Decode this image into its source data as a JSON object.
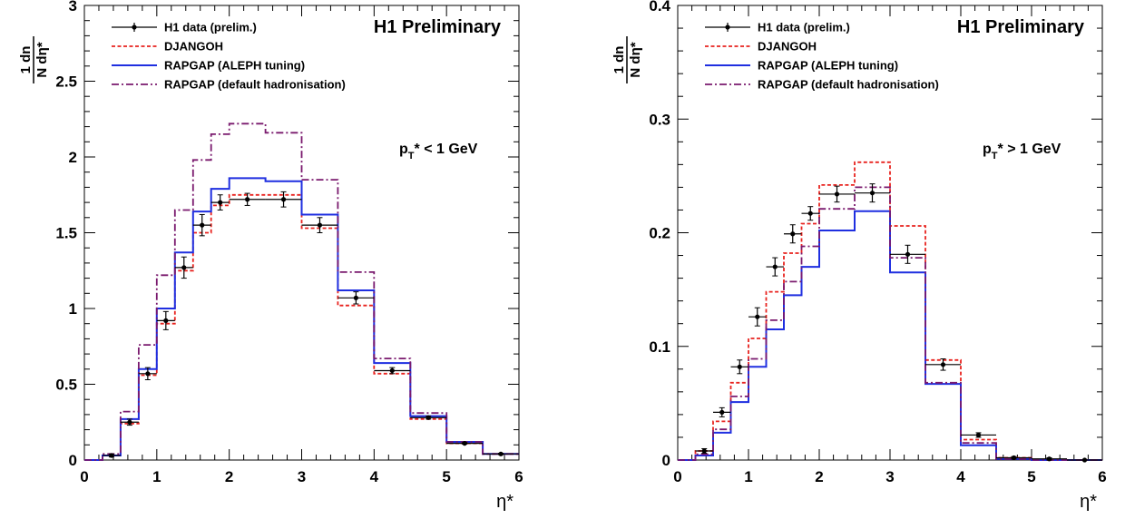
{
  "chart_data": [
    {
      "type": "line",
      "subtype": "histogram",
      "title": "H1 Preliminary",
      "annotation": {
        "base": "p",
        "sub": "T",
        "rest": "* < 1 GeV"
      },
      "xlabel": "η*",
      "ylabel": {
        "num": "1 dn",
        "den": "N dη*"
      },
      "xlim": [
        0,
        6
      ],
      "ylim": [
        0,
        3
      ],
      "xticks": [
        0,
        1,
        2,
        3,
        4,
        5,
        6
      ],
      "yticks": [
        0,
        0.5,
        1,
        1.5,
        2,
        2.5,
        3
      ],
      "grid": false,
      "legend_position": "top-left",
      "bin_edges": [
        0,
        0.25,
        0.5,
        0.75,
        1.0,
        1.25,
        1.5,
        1.75,
        2.0,
        2.5,
        3.0,
        3.5,
        4.0,
        4.5,
        5.0,
        5.5,
        6.0
      ],
      "series": [
        {
          "name": "H1 data (prelim.)",
          "style": "points",
          "color": "#000000",
          "x": [
            0.375,
            0.625,
            0.875,
            1.125,
            1.375,
            1.625,
            1.875,
            2.25,
            2.75,
            3.25,
            3.75,
            4.25,
            4.75,
            5.25,
            5.75
          ],
          "xerr": [
            0.125,
            0.125,
            0.125,
            0.125,
            0.125,
            0.125,
            0.125,
            0.25,
            0.25,
            0.25,
            0.25,
            0.25,
            0.25,
            0.25,
            0.25
          ],
          "y": [
            0.03,
            0.25,
            0.57,
            0.92,
            1.27,
            1.55,
            1.7,
            1.72,
            1.72,
            1.55,
            1.07,
            0.59,
            0.28,
            0.11,
            0.04
          ],
          "yerr": [
            0.01,
            0.02,
            0.04,
            0.06,
            0.07,
            0.07,
            0.05,
            0.04,
            0.05,
            0.05,
            0.04,
            0.02,
            0.01,
            0.005,
            0.005
          ]
        },
        {
          "name": "DJANGOH",
          "style": "dotted",
          "color": "#e8231f",
          "values": [
            0,
            0.03,
            0.24,
            0.56,
            0.9,
            1.25,
            1.5,
            1.68,
            1.75,
            1.75,
            1.53,
            1.02,
            0.57,
            0.27,
            0.11,
            0.04
          ]
        },
        {
          "name": "RAPGAP (ALEPH tuning)",
          "style": "solid",
          "color": "#1f2fe0",
          "values": [
            0,
            0.03,
            0.27,
            0.6,
            1.0,
            1.37,
            1.64,
            1.79,
            1.86,
            1.84,
            1.62,
            1.12,
            0.64,
            0.29,
            0.12,
            0.04
          ]
        },
        {
          "name": "RAPGAP (default hadronisation)",
          "style": "dashdot",
          "color": "#7a1a6e",
          "values": [
            0,
            0.04,
            0.32,
            0.76,
            1.22,
            1.65,
            1.98,
            2.15,
            2.22,
            2.16,
            1.85,
            1.24,
            0.67,
            0.31,
            0.12,
            0.04
          ]
        }
      ]
    },
    {
      "type": "line",
      "subtype": "histogram",
      "title": "H1 Preliminary",
      "annotation": {
        "base": "p",
        "sub": "T",
        "rest": "* > 1 GeV"
      },
      "xlabel": "η*",
      "ylabel": {
        "num": "1 dn",
        "den": "N dη*"
      },
      "xlim": [
        0,
        6
      ],
      "ylim": [
        0,
        0.4
      ],
      "xticks": [
        0,
        1,
        2,
        3,
        4,
        5,
        6
      ],
      "yticks": [
        0,
        0.1,
        0.2,
        0.3,
        0.4
      ],
      "grid": false,
      "legend_position": "top-left",
      "bin_edges": [
        0,
        0.25,
        0.5,
        0.75,
        1.0,
        1.25,
        1.5,
        1.75,
        2.0,
        2.5,
        3.0,
        3.5,
        4.0,
        4.5,
        5.0,
        5.5,
        6.0
      ],
      "series": [
        {
          "name": "H1 data (prelim.)",
          "style": "points",
          "color": "#000000",
          "x": [
            0.375,
            0.625,
            0.875,
            1.125,
            1.375,
            1.625,
            1.875,
            2.25,
            2.75,
            3.25,
            3.75,
            4.25,
            4.75,
            5.25,
            5.75
          ],
          "xerr": [
            0.125,
            0.125,
            0.125,
            0.125,
            0.125,
            0.125,
            0.125,
            0.25,
            0.25,
            0.25,
            0.25,
            0.25,
            0.25,
            0.25,
            0.25
          ],
          "y": [
            0.008,
            0.042,
            0.082,
            0.126,
            0.17,
            0.199,
            0.217,
            0.234,
            0.235,
            0.181,
            0.084,
            0.022,
            0.002,
            0.001,
            0.0
          ],
          "yerr": [
            0.002,
            0.004,
            0.006,
            0.008,
            0.008,
            0.008,
            0.006,
            0.007,
            0.008,
            0.008,
            0.005,
            0.002,
            0.001,
            0.001,
            0.0
          ]
        },
        {
          "name": "DJANGOH",
          "style": "dotted",
          "color": "#e8231f",
          "values": [
            0,
            0.008,
            0.034,
            0.068,
            0.107,
            0.148,
            0.182,
            0.208,
            0.242,
            0.262,
            0.206,
            0.088,
            0.018,
            0.002,
            0,
            0
          ]
        },
        {
          "name": "RAPGAP (ALEPH tuning)",
          "style": "solid",
          "color": "#1f2fe0",
          "values": [
            0,
            0.004,
            0.024,
            0.051,
            0.082,
            0.115,
            0.145,
            0.17,
            0.202,
            0.219,
            0.165,
            0.067,
            0.013,
            0.001,
            0,
            0
          ]
        },
        {
          "name": "RAPGAP (default hadronisation)",
          "style": "dashdot",
          "color": "#7a1a6e",
          "values": [
            0,
            0.005,
            0.027,
            0.056,
            0.089,
            0.123,
            0.157,
            0.188,
            0.221,
            0.24,
            0.178,
            0.068,
            0.015,
            0.001,
            0,
            0
          ]
        }
      ]
    }
  ]
}
